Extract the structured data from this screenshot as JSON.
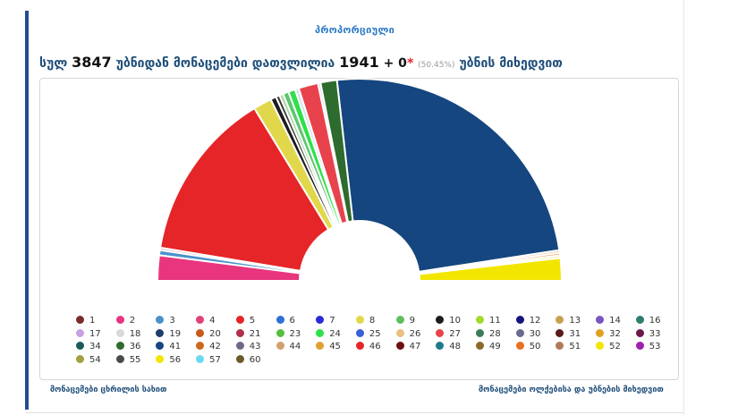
{
  "header": {
    "tab_title": "პროპორციული",
    "text_before": "სულ",
    "total_precincts": "3847",
    "text_middle": "უბნიდან მონაცემები დათვლილია",
    "counted_precincts": "1941",
    "plus_text": "+ 0",
    "star": "*",
    "percent": "(50.45%)",
    "text_after": "უბნის მიხედვით"
  },
  "footer": {
    "left_link": "მონაცემები ცხრილის სახით",
    "right_link": "მონაცემები ოლქებისა და უბნების მიხედვით"
  },
  "chart_data": {
    "type": "pie",
    "variant": "semicircle-donut",
    "title": "",
    "slices": [
      {
        "label": "56",
        "value": 3.6,
        "color": "#f2e600"
      },
      {
        "label": "57",
        "value": 0.4,
        "color": "#f3f0a0"
      },
      {
        "label": "60",
        "value": 0.4,
        "color": "#f3a85c"
      },
      {
        "label": "55",
        "value": 0.4,
        "color": "#f0c0a0"
      },
      {
        "label": "41",
        "value": 48.2,
        "color": "#15467f"
      },
      {
        "label": "36",
        "value": 2.6,
        "color": "#2e6b2e"
      },
      {
        "label": "34",
        "value": 0.4,
        "color": "#c9d9ee"
      },
      {
        "label": "27",
        "value": 3.1,
        "color": "#e8434c"
      },
      {
        "label": "25",
        "value": 0.6,
        "color": "#d9e0ea"
      },
      {
        "label": "24",
        "value": 1.1,
        "color": "#2ee04a"
      },
      {
        "label": "23",
        "value": 0.9,
        "color": "#5fc66e"
      },
      {
        "label": "21",
        "value": 0.6,
        "color": "#a8d8a0"
      },
      {
        "label": "19",
        "value": 0.6,
        "color": "#3a3a3a"
      },
      {
        "label": "10",
        "value": 0.9,
        "color": "#1c1c1c"
      },
      {
        "label": "8",
        "value": 2.9,
        "color": "#e0d84a"
      },
      {
        "label": "5",
        "value": 27.0,
        "color": "#e52527"
      },
      {
        "label": "4",
        "value": 0.4,
        "color": "#e6a0a8"
      },
      {
        "label": "3",
        "value": 0.8,
        "color": "#4a92c8"
      },
      {
        "label": "2",
        "value": 4.0,
        "color": "#e8357e"
      }
    ],
    "legend_position": "bottom",
    "legend": [
      {
        "label": "1",
        "color": "#7a2b2b"
      },
      {
        "label": "2",
        "color": "#e8357e"
      },
      {
        "label": "3",
        "color": "#4a92c8"
      },
      {
        "label": "4",
        "color": "#e0427a"
      },
      {
        "label": "5",
        "color": "#e52527"
      },
      {
        "label": "6",
        "color": "#2f6fd6"
      },
      {
        "label": "7",
        "color": "#2a2adb"
      },
      {
        "label": "8",
        "color": "#e0d84a"
      },
      {
        "label": "9",
        "color": "#5fbf5f"
      },
      {
        "label": "10",
        "color": "#1c1c1c"
      },
      {
        "label": "11",
        "color": "#a6d82c"
      },
      {
        "label": "12",
        "color": "#151580"
      },
      {
        "label": "13",
        "color": "#c8a050"
      },
      {
        "label": "14",
        "color": "#7a55c0"
      },
      {
        "label": "16",
        "color": "#2e7d6f"
      },
      {
        "label": "17",
        "color": "#c8a0e0"
      },
      {
        "label": "18",
        "color": "#d8d8d8"
      },
      {
        "label": "19",
        "color": "#1e3d6b"
      },
      {
        "label": "20",
        "color": "#c85a1a"
      },
      {
        "label": "21",
        "color": "#b0304a"
      },
      {
        "label": "23",
        "color": "#55c040"
      },
      {
        "label": "24",
        "color": "#2ee04a"
      },
      {
        "label": "25",
        "color": "#3a5fd6"
      },
      {
        "label": "26",
        "color": "#e8c080"
      },
      {
        "label": "27",
        "color": "#e8434c"
      },
      {
        "label": "28",
        "color": "#3d7d55"
      },
      {
        "label": "30",
        "color": "#6a6a90"
      },
      {
        "label": "31",
        "color": "#5a1a1a"
      },
      {
        "label": "32",
        "color": "#e0a020"
      },
      {
        "label": "33",
        "color": "#6b1a4a"
      },
      {
        "label": "34",
        "color": "#1e5a5a"
      },
      {
        "label": "36",
        "color": "#2e6b2e"
      },
      {
        "label": "41",
        "color": "#15467f"
      },
      {
        "label": "42",
        "color": "#c86a1a"
      },
      {
        "label": "43",
        "color": "#6a6a8a"
      },
      {
        "label": "44",
        "color": "#d0a070"
      },
      {
        "label": "45",
        "color": "#e0a030"
      },
      {
        "label": "46",
        "color": "#e52527"
      },
      {
        "label": "47",
        "color": "#6b1010"
      },
      {
        "label": "48",
        "color": "#1e7a8a"
      },
      {
        "label": "49",
        "color": "#8a6a2a"
      },
      {
        "label": "50",
        "color": "#e87020"
      },
      {
        "label": "51",
        "color": "#b07a5a"
      },
      {
        "label": "52",
        "color": "#f2e600"
      },
      {
        "label": "53",
        "color": "#a020b0"
      },
      {
        "label": "54",
        "color": "#a0a040"
      },
      {
        "label": "55",
        "color": "#4a4a4a"
      },
      {
        "label": "56",
        "color": "#f2e600"
      },
      {
        "label": "57",
        "color": "#6ad8f0"
      },
      {
        "label": "60",
        "color": "#6b5a2a"
      }
    ]
  }
}
